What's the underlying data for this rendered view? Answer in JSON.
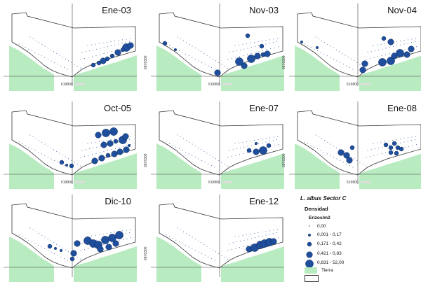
{
  "panels": [
    {
      "title": "Ene-03"
    },
    {
      "title": "Nov-03"
    },
    {
      "title": "Nov-04"
    },
    {
      "title": "Oct-05"
    },
    {
      "title": "Ene-07"
    },
    {
      "title": "Ene-08"
    },
    {
      "title": "Dic-10"
    },
    {
      "title": "Ene-12"
    }
  ],
  "axis": {
    "y_coord": "6876300",
    "x_coord": "619800"
  },
  "legend": {
    "title": "L. albus Sector C",
    "heading": "Densidad",
    "subheading": "Erizos/m2",
    "classes": [
      "0,00",
      "0,001 - 0,17",
      "0,171 - 0,42",
      "0,421 - 0,83",
      "0,831 - 52,00"
    ],
    "land_label": "Tierra",
    "empty_label": ""
  },
  "colors": {
    "land": "#b8ebc0",
    "point": "#1f4e9c",
    "point_stroke": "#0b2a5c",
    "outline": "#333333"
  }
}
